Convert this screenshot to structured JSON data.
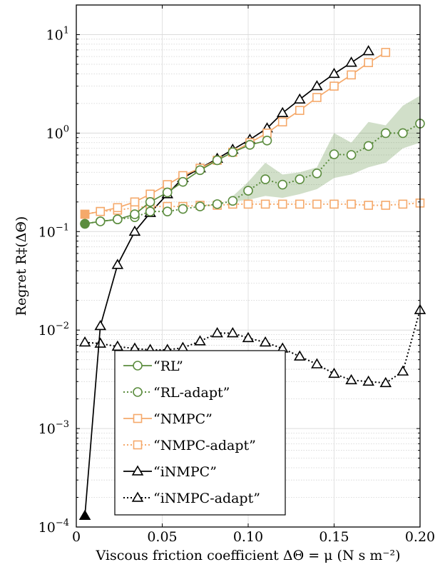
{
  "chart_data": {
    "type": "line",
    "xlabel": "Viscous friction coefficient ΔΘ = μ (N s m⁻²)",
    "ylabel": "Regret R‡(ΔΘ)",
    "xlim": [
      0,
      0.2
    ],
    "ylim": [
      0.0001,
      20
    ],
    "yscale": "log",
    "grid": true,
    "legend_position": "lower-left",
    "x_ticks": [
      {
        "value": 0,
        "label": "0"
      },
      {
        "value": 0.05,
        "label": "0.05"
      },
      {
        "value": 0.1,
        "label": "0.10"
      },
      {
        "value": 0.15,
        "label": "0.15"
      },
      {
        "value": 0.2,
        "label": "0.20"
      }
    ],
    "y_ticks": [
      {
        "value": 0.0001,
        "base": "10",
        "exp": "−4"
      },
      {
        "value": 0.001,
        "base": "10",
        "exp": "−3"
      },
      {
        "value": 0.01,
        "base": "10",
        "exp": "−2"
      },
      {
        "value": 0.1,
        "base": "10",
        "exp": "−1"
      },
      {
        "value": 1,
        "base": "10",
        "exp": "0"
      },
      {
        "value": 10,
        "base": "10",
        "exp": "1"
      }
    ],
    "band": {
      "series": "“RL-adapt”",
      "color": "#5b8c3e",
      "x": [
        0.09,
        0.1,
        0.11,
        0.12,
        0.13,
        0.14,
        0.15,
        0.16,
        0.17,
        0.18,
        0.19,
        0.2
      ],
      "lower": [
        0.2,
        0.21,
        0.23,
        0.22,
        0.24,
        0.27,
        0.35,
        0.38,
        0.45,
        0.5,
        0.7,
        0.8
      ],
      "upper": [
        0.22,
        0.32,
        0.5,
        0.38,
        0.4,
        0.45,
        1.0,
        0.8,
        1.3,
        1.2,
        1.9,
        2.4
      ]
    },
    "series": [
      {
        "name": "“RL”",
        "color": "#5b8c3e",
        "marker": "circle",
        "dash": "solid",
        "x": [
          0.005,
          0.014,
          0.024,
          0.034,
          0.043,
          0.053,
          0.062,
          0.072,
          0.082,
          0.091,
          0.101,
          0.111
        ],
        "y": [
          0.12,
          0.127,
          0.133,
          0.15,
          0.2,
          0.25,
          0.32,
          0.42,
          0.53,
          0.64,
          0.76,
          0.84
        ]
      },
      {
        "name": "“RL-adapt”",
        "color": "#5b8c3e",
        "marker": "circle",
        "dash": "dotted",
        "x": [
          0.005,
          0.014,
          0.024,
          0.034,
          0.043,
          0.053,
          0.062,
          0.072,
          0.082,
          0.091,
          0.1,
          0.11,
          0.12,
          0.13,
          0.14,
          0.15,
          0.16,
          0.17,
          0.18,
          0.19,
          0.2
        ],
        "y": [
          0.12,
          0.127,
          0.133,
          0.14,
          0.16,
          0.16,
          0.17,
          0.18,
          0.19,
          0.205,
          0.26,
          0.34,
          0.3,
          0.34,
          0.39,
          0.61,
          0.6,
          0.74,
          1.0,
          1.0,
          1.25
        ]
      },
      {
        "name": "“NMPC”",
        "color": "#f5a96b",
        "marker": "square",
        "dash": "solid",
        "x": [
          0.005,
          0.014,
          0.024,
          0.034,
          0.043,
          0.053,
          0.062,
          0.072,
          0.082,
          0.091,
          0.101,
          0.111,
          0.12,
          0.13,
          0.14,
          0.15,
          0.16,
          0.17,
          0.18
        ],
        "y": [
          0.15,
          0.16,
          0.175,
          0.2,
          0.24,
          0.3,
          0.37,
          0.44,
          0.53,
          0.64,
          0.8,
          1.0,
          1.3,
          1.7,
          2.3,
          3.0,
          3.9,
          5.2,
          6.6
        ]
      },
      {
        "name": "“NMPC-adapt”",
        "color": "#f5a96b",
        "marker": "square",
        "dash": "dotted",
        "x": [
          0.005,
          0.014,
          0.024,
          0.034,
          0.043,
          0.053,
          0.062,
          0.072,
          0.082,
          0.091,
          0.1,
          0.11,
          0.12,
          0.13,
          0.14,
          0.15,
          0.16,
          0.17,
          0.18,
          0.19,
          0.2
        ],
        "y": [
          0.15,
          0.16,
          0.165,
          0.175,
          0.18,
          0.18,
          0.18,
          0.185,
          0.185,
          0.19,
          0.19,
          0.19,
          0.19,
          0.19,
          0.19,
          0.19,
          0.19,
          0.185,
          0.185,
          0.19,
          0.195
        ]
      },
      {
        "name": "“iNMPC”",
        "color": "#000000",
        "marker": "triangle",
        "dash": "solid",
        "x": [
          0.005,
          0.014,
          0.024,
          0.034,
          0.043,
          0.053,
          0.062,
          0.072,
          0.082,
          0.091,
          0.101,
          0.111,
          0.12,
          0.13,
          0.14,
          0.15,
          0.16,
          0.17
        ],
        "y": [
          0.00013,
          0.011,
          0.046,
          0.1,
          0.155,
          0.24,
          0.35,
          0.44,
          0.55,
          0.68,
          0.86,
          1.12,
          1.6,
          2.2,
          3.0,
          4.0,
          5.2,
          6.8
        ]
      },
      {
        "name": "“iNMPC-adapt”",
        "color": "#000000",
        "marker": "triangle",
        "dash": "dotted",
        "x": [
          0.005,
          0.014,
          0.024,
          0.034,
          0.043,
          0.053,
          0.062,
          0.072,
          0.082,
          0.091,
          0.1,
          0.11,
          0.12,
          0.13,
          0.14,
          0.15,
          0.16,
          0.17,
          0.18,
          0.19,
          0.2
        ],
        "y": [
          0.0075,
          0.0073,
          0.0068,
          0.0065,
          0.0063,
          0.0063,
          0.0066,
          0.0077,
          0.0093,
          0.0093,
          0.0083,
          0.0075,
          0.0065,
          0.0054,
          0.0045,
          0.0036,
          0.0031,
          0.003,
          0.0029,
          0.0038,
          0.016
        ]
      }
    ]
  }
}
